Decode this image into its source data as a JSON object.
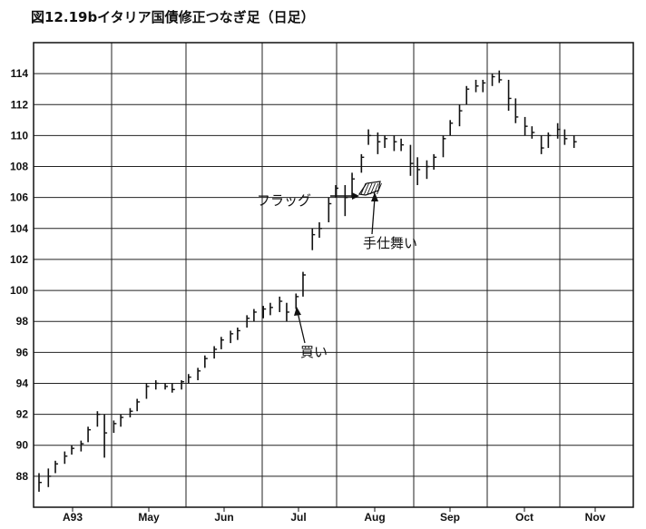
{
  "chart_data": {
    "type": "ohlc",
    "title": "図12.19bイタリア国債修正つなぎ足（日足）",
    "xlabel": "",
    "ylabel": "",
    "ylim": [
      86,
      116
    ],
    "y_ticks": [
      88,
      90,
      92,
      94,
      96,
      98,
      100,
      102,
      104,
      106,
      108,
      110,
      112,
      114
    ],
    "x_tick_labels": [
      "A93",
      "May",
      "Jun",
      "Jul",
      "Aug",
      "Sep",
      "Oct",
      "Nov"
    ],
    "grid": true,
    "series": [
      {
        "name": "",
        "points": [
          {
            "x": "Apr 1",
            "high": 88.2,
            "low": 87.0,
            "close": 87.6
          },
          {
            "x": "Apr 5",
            "high": 88.5,
            "low": 87.3,
            "close": 88.0
          },
          {
            "x": "Apr 8",
            "high": 89.0,
            "low": 88.2,
            "close": 88.8
          },
          {
            "x": "Apr 12",
            "high": 89.6,
            "low": 88.8,
            "close": 89.3
          },
          {
            "x": "Apr 15",
            "high": 90.0,
            "low": 89.4,
            "close": 89.8
          },
          {
            "x": "Apr 19",
            "high": 90.3,
            "low": 89.6,
            "close": 90.1
          },
          {
            "x": "Apr 22",
            "high": 91.2,
            "low": 90.2,
            "close": 91.0
          },
          {
            "x": "Apr 26",
            "high": 92.2,
            "low": 91.2,
            "close": 92.0
          },
          {
            "x": "Apr 29",
            "high": 92.0,
            "low": 89.2,
            "close": 90.8
          },
          {
            "x": "May 3",
            "high": 91.6,
            "low": 90.8,
            "close": 91.4
          },
          {
            "x": "May 6",
            "high": 92.0,
            "low": 91.2,
            "close": 91.8
          },
          {
            "x": "May 10",
            "high": 92.4,
            "low": 91.8,
            "close": 92.2
          },
          {
            "x": "May 13",
            "high": 93.0,
            "low": 92.2,
            "close": 92.8
          },
          {
            "x": "May 17",
            "high": 94.0,
            "low": 93.0,
            "close": 93.8
          },
          {
            "x": "May 21",
            "high": 94.2,
            "low": 93.6,
            "close": 94.0
          },
          {
            "x": "May 25",
            "high": 94.0,
            "low": 93.6,
            "close": 93.8
          },
          {
            "x": "May 28",
            "high": 94.0,
            "low": 93.4,
            "close": 93.6
          },
          {
            "x": "Jun 1",
            "high": 94.2,
            "low": 93.6,
            "close": 94.1
          },
          {
            "x": "Jun 4",
            "high": 94.6,
            "low": 94.0,
            "close": 94.4
          },
          {
            "x": "Jun 8",
            "high": 95.0,
            "low": 94.2,
            "close": 94.8
          },
          {
            "x": "Jun 11",
            "high": 95.8,
            "low": 95.0,
            "close": 95.6
          },
          {
            "x": "Jun 15",
            "high": 96.4,
            "low": 95.6,
            "close": 96.2
          },
          {
            "x": "Jun 18",
            "high": 97.0,
            "low": 96.2,
            "close": 96.8
          },
          {
            "x": "Jun 22",
            "high": 97.4,
            "low": 96.6,
            "close": 97.2
          },
          {
            "x": "Jun 25",
            "high": 97.6,
            "low": 96.8,
            "close": 97.4
          },
          {
            "x": "Jun 29",
            "high": 98.4,
            "low": 97.6,
            "close": 98.2
          },
          {
            "x": "Jul 2",
            "high": 98.8,
            "low": 98.0,
            "close": 98.6
          },
          {
            "x": "Jul 6",
            "high": 99.0,
            "low": 98.2,
            "close": 98.8
          },
          {
            "x": "Jul 9",
            "high": 99.2,
            "low": 98.4,
            "close": 98.9
          },
          {
            "x": "Jul 13",
            "high": 99.6,
            "low": 98.6,
            "close": 99.3
          },
          {
            "x": "Jul 16",
            "high": 99.2,
            "low": 98.0,
            "close": 98.6
          },
          {
            "x": "Jul 20",
            "high": 99.8,
            "low": 98.8,
            "close": 99.6
          },
          {
            "x": "Jul 23",
            "high": 101.2,
            "low": 99.6,
            "close": 101.0
          },
          {
            "x": "Jul 27",
            "high": 104.0,
            "low": 102.6,
            "close": 103.6
          },
          {
            "x": "Jul 30",
            "high": 104.4,
            "low": 103.4,
            "close": 104.0
          },
          {
            "x": "Aug 3",
            "high": 106.0,
            "low": 104.4,
            "close": 105.6
          },
          {
            "x": "Aug 6",
            "high": 106.8,
            "low": 106.0,
            "close": 106.6
          },
          {
            "x": "Aug 10",
            "high": 106.8,
            "low": 104.8,
            "close": 106.0
          },
          {
            "x": "Aug 13",
            "high": 107.6,
            "low": 106.0,
            "close": 107.2
          },
          {
            "x": "Aug 17",
            "high": 108.8,
            "low": 107.6,
            "close": 108.6
          },
          {
            "x": "Aug 20",
            "high": 110.4,
            "low": 109.4,
            "close": 110.0
          },
          {
            "x": "Aug 24",
            "high": 110.2,
            "low": 108.8,
            "close": 109.6
          },
          {
            "x": "Aug 27",
            "high": 110.0,
            "low": 109.2,
            "close": 109.8
          },
          {
            "x": "Aug 31",
            "high": 110.0,
            "low": 109.0,
            "close": 109.6
          },
          {
            "x": "Sep 3",
            "high": 109.8,
            "low": 109.0,
            "close": 109.4
          },
          {
            "x": "Sep 7",
            "high": 109.4,
            "low": 107.4,
            "close": 108.2
          },
          {
            "x": "Sep 10",
            "high": 108.6,
            "low": 106.8,
            "close": 107.8
          },
          {
            "x": "Sep 14",
            "high": 108.4,
            "low": 107.2,
            "close": 108.0
          },
          {
            "x": "Sep 17",
            "high": 108.8,
            "low": 107.8,
            "close": 108.6
          },
          {
            "x": "Sep 21",
            "high": 110.0,
            "low": 108.6,
            "close": 109.8
          },
          {
            "x": "Sep 24",
            "high": 111.0,
            "low": 110.0,
            "close": 110.8
          },
          {
            "x": "Sep 28",
            "high": 112.0,
            "low": 110.6,
            "close": 111.6
          },
          {
            "x": "Oct 1",
            "high": 113.2,
            "low": 112.0,
            "close": 113.0
          },
          {
            "x": "Oct 5",
            "high": 113.6,
            "low": 112.8,
            "close": 113.2
          },
          {
            "x": "Oct 8",
            "high": 113.6,
            "low": 112.8,
            "close": 113.4
          },
          {
            "x": "Oct 12",
            "high": 114.0,
            "low": 113.2,
            "close": 113.8
          },
          {
            "x": "Oct 15",
            "high": 114.2,
            "low": 113.4,
            "close": 113.6
          },
          {
            "x": "Oct 19",
            "high": 113.6,
            "low": 111.6,
            "close": 112.4
          },
          {
            "x": "Oct 22",
            "high": 112.4,
            "low": 110.8,
            "close": 111.2
          },
          {
            "x": "Oct 26",
            "high": 111.2,
            "low": 110.0,
            "close": 110.6
          },
          {
            "x": "Oct 29",
            "high": 110.6,
            "low": 109.8,
            "close": 110.2
          },
          {
            "x": "Nov 2",
            "high": 110.0,
            "low": 108.8,
            "close": 109.2
          },
          {
            "x": "Nov 5",
            "high": 110.2,
            "low": 109.2,
            "close": 110.0
          },
          {
            "x": "Nov 9",
            "high": 110.8,
            "low": 109.8,
            "close": 110.4
          },
          {
            "x": "Nov 12",
            "high": 110.4,
            "low": 109.4,
            "close": 109.8
          },
          {
            "x": "Nov 16",
            "high": 110.0,
            "low": 109.2,
            "close": 109.6
          }
        ]
      }
    ],
    "annotations": [
      {
        "text": "フラッグ"
      },
      {
        "text": "手仕舞い"
      },
      {
        "text": "買い"
      }
    ]
  }
}
